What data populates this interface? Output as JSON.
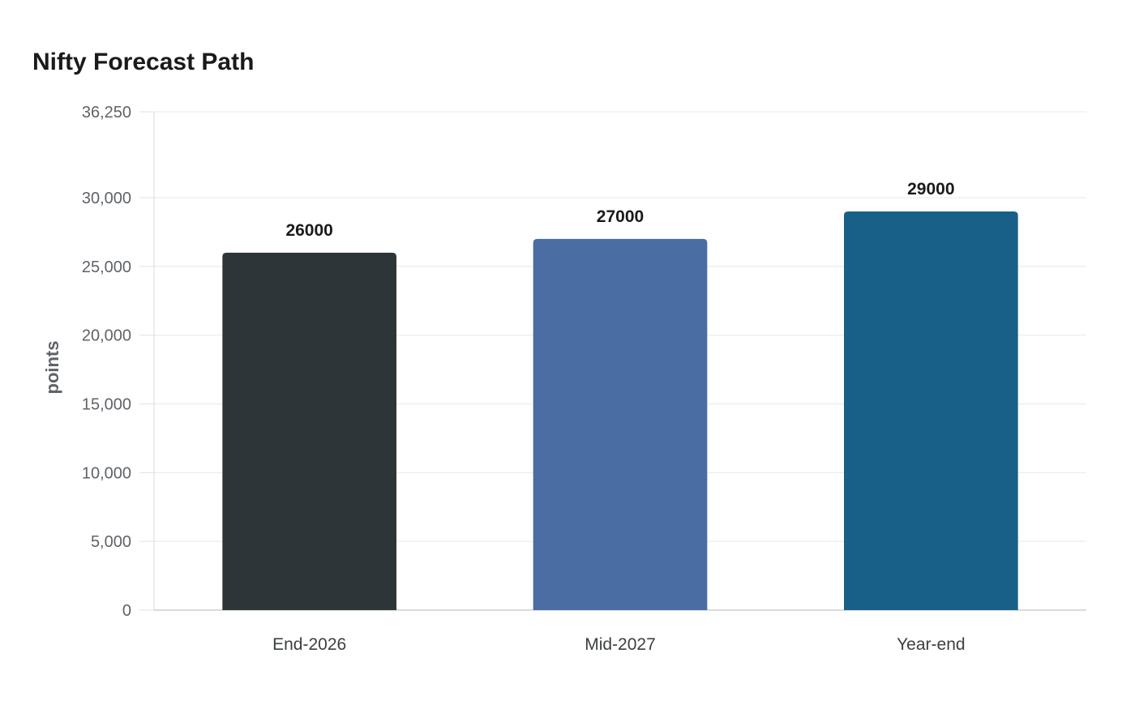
{
  "chart_data": {
    "type": "bar",
    "title": "Nifty Forecast Path",
    "xlabel": "",
    "ylabel": "points",
    "categories": [
      "End-2026",
      "Mid-2027",
      "Year-end"
    ],
    "values": [
      26000,
      27000,
      29000
    ],
    "data_labels": [
      "26000",
      "27000",
      "29000"
    ],
    "colors": [
      "#2e3538",
      "#4a6da3",
      "#186088"
    ],
    "ylim": [
      0,
      36250
    ],
    "yticks": [
      0,
      5000,
      10000,
      15000,
      20000,
      25000,
      30000,
      36250
    ],
    "ytick_labels": [
      "0",
      "5,000",
      "10,000",
      "15,000",
      "20,000",
      "25,000",
      "30,000",
      "36,250"
    ],
    "grid": true,
    "legend": "none"
  }
}
